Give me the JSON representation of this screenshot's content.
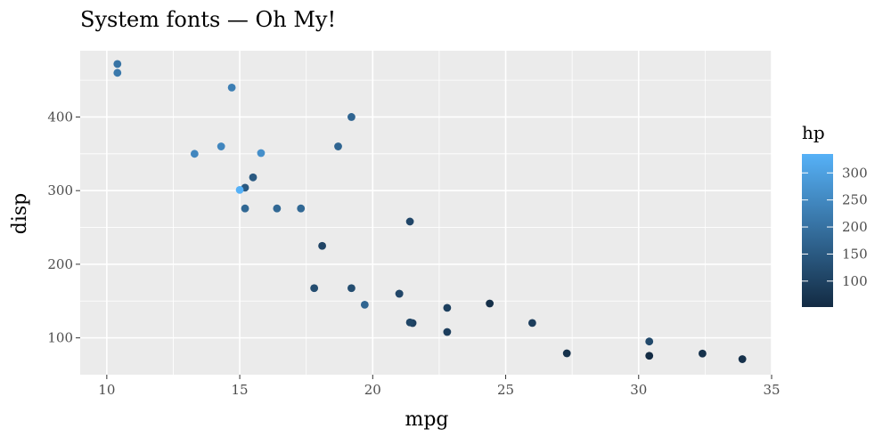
{
  "chart_data": {
    "type": "scatter",
    "title": "System fonts — Oh My!",
    "xlabel": "mpg",
    "ylabel": "disp",
    "xlim": [
      9,
      35
    ],
    "ylim": [
      50,
      490
    ],
    "x_ticks": [
      10,
      15,
      20,
      25,
      30,
      35
    ],
    "y_ticks": [
      100,
      200,
      300,
      400
    ],
    "grid": true,
    "panel_background": "#ebebeb",
    "color_scale": {
      "name": "hp",
      "low": 52,
      "high": 335,
      "low_color": "#132b43",
      "high_color": "#56b1f7",
      "breaks": [
        100,
        150,
        200,
        250,
        300
      ],
      "legend_position": "right"
    },
    "points": [
      {
        "x": 21.0,
        "y": 160,
        "hp": 110
      },
      {
        "x": 21.0,
        "y": 160,
        "hp": 110
      },
      {
        "x": 22.8,
        "y": 108,
        "hp": 93
      },
      {
        "x": 21.4,
        "y": 258,
        "hp": 110
      },
      {
        "x": 18.7,
        "y": 360,
        "hp": 175
      },
      {
        "x": 18.1,
        "y": 225,
        "hp": 105
      },
      {
        "x": 14.3,
        "y": 360,
        "hp": 245
      },
      {
        "x": 24.4,
        "y": 146.7,
        "hp": 62
      },
      {
        "x": 22.8,
        "y": 140.8,
        "hp": 95
      },
      {
        "x": 19.2,
        "y": 167.6,
        "hp": 123
      },
      {
        "x": 17.8,
        "y": 167.6,
        "hp": 123
      },
      {
        "x": 16.4,
        "y": 275.8,
        "hp": 180
      },
      {
        "x": 17.3,
        "y": 275.8,
        "hp": 180
      },
      {
        "x": 15.2,
        "y": 275.8,
        "hp": 180
      },
      {
        "x": 10.4,
        "y": 472,
        "hp": 205
      },
      {
        "x": 10.4,
        "y": 460,
        "hp": 215
      },
      {
        "x": 14.7,
        "y": 440,
        "hp": 230
      },
      {
        "x": 32.4,
        "y": 78.7,
        "hp": 66
      },
      {
        "x": 30.4,
        "y": 75.7,
        "hp": 52
      },
      {
        "x": 33.9,
        "y": 71.1,
        "hp": 65
      },
      {
        "x": 21.5,
        "y": 120.1,
        "hp": 97
      },
      {
        "x": 15.5,
        "y": 318,
        "hp": 150
      },
      {
        "x": 15.2,
        "y": 304,
        "hp": 150
      },
      {
        "x": 13.3,
        "y": 350,
        "hp": 245
      },
      {
        "x": 19.2,
        "y": 400,
        "hp": 175
      },
      {
        "x": 27.3,
        "y": 79,
        "hp": 66
      },
      {
        "x": 26.0,
        "y": 120.3,
        "hp": 91
      },
      {
        "x": 30.4,
        "y": 95.1,
        "hp": 113
      },
      {
        "x": 15.8,
        "y": 351,
        "hp": 264
      },
      {
        "x": 19.7,
        "y": 145,
        "hp": 175
      },
      {
        "x": 15.0,
        "y": 301,
        "hp": 335
      },
      {
        "x": 21.4,
        "y": 121,
        "hp": 109
      }
    ]
  }
}
